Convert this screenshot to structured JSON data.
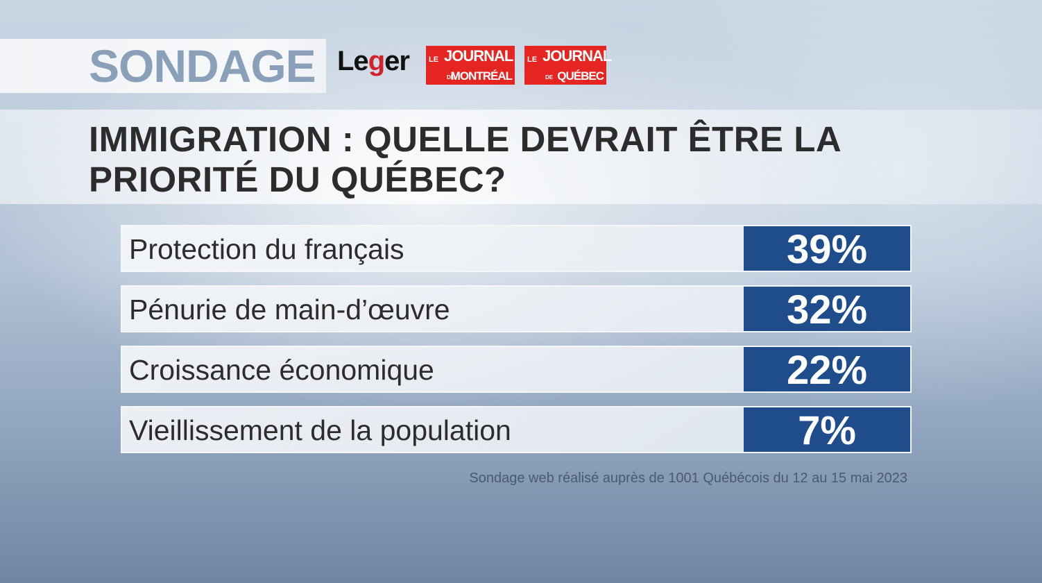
{
  "header": {
    "tag": "SONDAGE",
    "logos": [
      "Leger",
      "Le Journal de Montréal",
      "Le Journal de Québec"
    ]
  },
  "chart_data": {
    "type": "table",
    "title": "IMMIGRATION : QUELLE DEVRAIT ÊTRE LA PRIORITÉ DU QUÉBEC?",
    "categories": [
      "Protection du français",
      "Pénurie de main-d’œuvre",
      "Croissance économique",
      "Vieillissement de la population"
    ],
    "values": [
      39,
      32,
      22,
      7
    ],
    "value_labels": [
      "39%",
      "32%",
      "22%",
      "7%"
    ],
    "note": "Sondage web réalisé auprès de 1001 Québécois du 12 au 15 mai 2023"
  },
  "colors": {
    "bar": "#1f4d8c",
    "brand_red": "#e52521",
    "tag_text": "#8a9fb8"
  }
}
